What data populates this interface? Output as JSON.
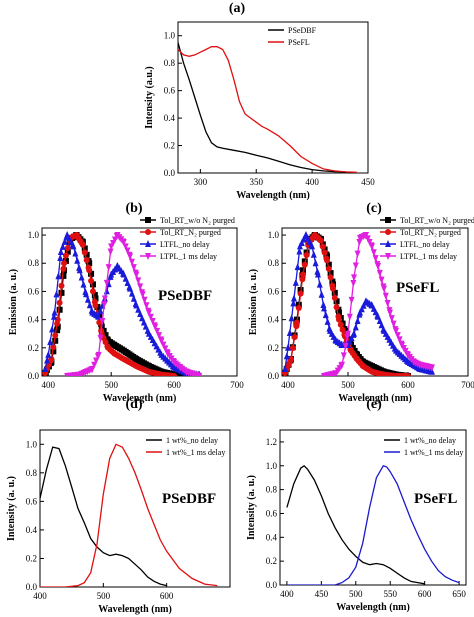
{
  "chart_data": [
    {
      "panel": "(a)",
      "type": "line",
      "title": "(a)",
      "xlabel": "Wavelength (nm)",
      "ylabel": "Intensity (a.u.)",
      "xlim": [
        280,
        450
      ],
      "ylim": [
        0,
        1.1
      ],
      "xticks": [
        "300",
        "350",
        "400",
        "450"
      ],
      "yticks": [
        "0.0",
        "0.2",
        "0.4",
        "0.6",
        "0.8",
        "1.0"
      ],
      "legend_position": "top-right",
      "series": [
        {
          "name": "PSeDBF",
          "color": "#000000",
          "x": [
            280,
            285,
            290,
            295,
            300,
            305,
            310,
            315,
            320,
            330,
            340,
            350,
            360,
            370,
            380,
            390,
            400,
            410,
            420,
            430
          ],
          "y": [
            0.95,
            0.8,
            0.68,
            0.55,
            0.42,
            0.3,
            0.22,
            0.19,
            0.18,
            0.165,
            0.15,
            0.13,
            0.11,
            0.085,
            0.06,
            0.04,
            0.025,
            0.015,
            0.01,
            0.008
          ]
        },
        {
          "name": "PSeFL",
          "color": "#e01010",
          "x": [
            280,
            285,
            290,
            295,
            300,
            305,
            310,
            315,
            320,
            325,
            330,
            335,
            340,
            345,
            350,
            355,
            360,
            370,
            380,
            390,
            400,
            410,
            420,
            430,
            440
          ],
          "y": [
            0.9,
            0.86,
            0.85,
            0.86,
            0.88,
            0.9,
            0.92,
            0.92,
            0.9,
            0.82,
            0.68,
            0.52,
            0.43,
            0.4,
            0.37,
            0.34,
            0.32,
            0.27,
            0.2,
            0.12,
            0.07,
            0.03,
            0.015,
            0.008,
            0.005
          ]
        }
      ]
    },
    {
      "panel": "(b)",
      "type": "line",
      "title": "(b)",
      "annotation": "PSeDBF",
      "xlabel": "Wavelength (nm)",
      "ylabel": "Emission (a. u.)",
      "xlim": [
        390,
        700
      ],
      "ylim": [
        0,
        1.05
      ],
      "xticks": [
        "400",
        "500",
        "600",
        "700"
      ],
      "yticks": [
        "0.0",
        "0.2",
        "0.4",
        "0.6",
        "0.8",
        "1.0"
      ],
      "legend_position": "top-right",
      "series": [
        {
          "name": "Tol_RT_w/o N₂ purged",
          "color": "#000000",
          "marker": "square",
          "x": [
            395,
            405,
            415,
            425,
            435,
            445,
            455,
            465,
            475,
            485,
            495,
            505,
            520,
            540,
            560,
            580,
            600,
            620
          ],
          "y": [
            0.02,
            0.1,
            0.35,
            0.75,
            0.97,
            1.0,
            0.95,
            0.8,
            0.55,
            0.35,
            0.25,
            0.22,
            0.18,
            0.12,
            0.07,
            0.03,
            0.01,
            0.0
          ]
        },
        {
          "name": "Tol_RT_N₂ purged",
          "color": "#e01010",
          "marker": "circle",
          "x": [
            395,
            405,
            415,
            425,
            435,
            445,
            455,
            465,
            475,
            485,
            495,
            505,
            520,
            540,
            560,
            580,
            600
          ],
          "y": [
            0.02,
            0.12,
            0.4,
            0.8,
            0.98,
            1.0,
            0.93,
            0.75,
            0.5,
            0.3,
            0.2,
            0.16,
            0.12,
            0.07,
            0.03,
            0.01,
            0.0
          ]
        },
        {
          "name": "LTFL_no delay",
          "color": "#1a1adb",
          "marker": "triangle",
          "x": [
            395,
            400,
            410,
            420,
            430,
            440,
            450,
            460,
            470,
            480,
            490,
            500,
            510,
            520,
            530,
            540,
            560,
            580,
            600,
            620,
            640
          ],
          "y": [
            0.05,
            0.15,
            0.45,
            0.88,
            1.0,
            0.92,
            0.75,
            0.58,
            0.45,
            0.42,
            0.55,
            0.72,
            0.78,
            0.72,
            0.62,
            0.5,
            0.3,
            0.15,
            0.06,
            0.02,
            0.01
          ]
        },
        {
          "name": "LTPL_1 ms delay",
          "color": "#e020e0",
          "marker": "triangle-down",
          "x": [
            430,
            450,
            470,
            480,
            490,
            500,
            510,
            520,
            530,
            540,
            550,
            560,
            570,
            580,
            590,
            600,
            610,
            620,
            640
          ],
          "y": [
            0.0,
            0.01,
            0.05,
            0.15,
            0.55,
            0.92,
            1.0,
            0.95,
            0.85,
            0.72,
            0.58,
            0.45,
            0.35,
            0.25,
            0.16,
            0.1,
            0.06,
            0.03,
            0.0
          ]
        }
      ]
    },
    {
      "panel": "(c)",
      "type": "line",
      "title": "(c)",
      "annotation": "PSeFL",
      "xlabel": "Wavelength (nm)",
      "ylabel": "Emission (a. u.)",
      "xlim": [
        390,
        700
      ],
      "ylim": [
        0,
        1.05
      ],
      "xticks": [
        "400",
        "500",
        "600",
        "700"
      ],
      "yticks": [
        "0.0",
        "0.2",
        "0.4",
        "0.6",
        "0.8",
        "1.0"
      ],
      "legend_position": "top-right",
      "series": [
        {
          "name": "Tol_RT_w/o N₂ purged",
          "color": "#000000",
          "marker": "square",
          "x": [
            395,
            405,
            415,
            425,
            435,
            445,
            455,
            465,
            475,
            485,
            495,
            505,
            515,
            525,
            540,
            560,
            580,
            600
          ],
          "y": [
            0.02,
            0.12,
            0.4,
            0.75,
            0.96,
            1.0,
            0.97,
            0.85,
            0.65,
            0.45,
            0.32,
            0.22,
            0.15,
            0.1,
            0.07,
            0.03,
            0.01,
            0.0
          ]
        },
        {
          "name": "Tol_RT_N₂ purged",
          "color": "#e01010",
          "marker": "circle",
          "x": [
            395,
            405,
            415,
            425,
            435,
            445,
            455,
            465,
            475,
            485,
            495,
            505,
            515,
            525,
            540,
            560,
            580,
            600
          ],
          "y": [
            0.02,
            0.12,
            0.38,
            0.72,
            0.95,
            1.0,
            0.96,
            0.82,
            0.62,
            0.4,
            0.28,
            0.18,
            0.12,
            0.07,
            0.03,
            0.01,
            0.0,
            0.0
          ]
        },
        {
          "name": "LTFL_no delay",
          "color": "#1a1adb",
          "marker": "triangle",
          "x": [
            395,
            400,
            410,
            420,
            430,
            440,
            450,
            460,
            470,
            480,
            490,
            500,
            510,
            520,
            530,
            540,
            550,
            560,
            580,
            600,
            620,
            640
          ],
          "y": [
            0.05,
            0.2,
            0.55,
            0.92,
            1.0,
            0.92,
            0.72,
            0.48,
            0.32,
            0.25,
            0.22,
            0.22,
            0.3,
            0.45,
            0.53,
            0.5,
            0.42,
            0.32,
            0.18,
            0.1,
            0.05,
            0.03
          ]
        },
        {
          "name": "LTPL_1 ms delay",
          "color": "#e020e0",
          "marker": "triangle-down",
          "x": [
            460,
            480,
            490,
            500,
            510,
            520,
            530,
            540,
            550,
            560,
            570,
            580,
            590,
            600,
            610,
            620,
            630,
            640
          ],
          "y": [
            0.0,
            0.02,
            0.08,
            0.3,
            0.7,
            0.98,
            1.0,
            0.92,
            0.78,
            0.62,
            0.45,
            0.32,
            0.22,
            0.15,
            0.1,
            0.08,
            0.07,
            0.06
          ]
        }
      ]
    },
    {
      "panel": "(d)",
      "type": "line",
      "title": "(d)",
      "annotation": "PSeDBF",
      "xlabel": "Wavelength (nm)",
      "ylabel": "Intensity (a. u.)",
      "xlim": [
        400,
        700
      ],
      "ylim": [
        0,
        1.1
      ],
      "xticks": [
        "400",
        "500",
        "600"
      ],
      "yticks": [
        "0.0",
        "0.2",
        "0.4",
        "0.6",
        "0.8",
        "1.0"
      ],
      "legend_position": "top-right",
      "series": [
        {
          "name": "1 wt%_no delay",
          "color": "#000000",
          "x": [
            400,
            410,
            420,
            430,
            440,
            450,
            460,
            470,
            480,
            490,
            500,
            510,
            520,
            530,
            540,
            550,
            560,
            570,
            580,
            590,
            600
          ],
          "y": [
            0.62,
            0.82,
            0.98,
            0.97,
            0.85,
            0.7,
            0.55,
            0.45,
            0.34,
            0.28,
            0.24,
            0.22,
            0.23,
            0.22,
            0.2,
            0.16,
            0.12,
            0.07,
            0.04,
            0.02,
            0.01
          ]
        },
        {
          "name": "1 wt%_1 ms delay",
          "color": "#e01010",
          "x": [
            400,
            440,
            460,
            470,
            480,
            490,
            500,
            510,
            520,
            530,
            540,
            550,
            560,
            570,
            580,
            590,
            600,
            620,
            640,
            660,
            680
          ],
          "y": [
            0.0,
            0.0,
            0.01,
            0.03,
            0.1,
            0.3,
            0.65,
            0.9,
            1.0,
            0.98,
            0.9,
            0.8,
            0.68,
            0.55,
            0.44,
            0.33,
            0.25,
            0.13,
            0.06,
            0.02,
            0.01
          ]
        }
      ]
    },
    {
      "panel": "(e)",
      "type": "line",
      "title": "(e)",
      "annotation": "PSeFL",
      "xlabel": "Wavelength (nm)",
      "ylabel": "Intensity (a. u.)",
      "xlim": [
        390,
        660
      ],
      "ylim": [
        0,
        1.3
      ],
      "xticks": [
        "400",
        "450",
        "500",
        "550",
        "600",
        "650"
      ],
      "yticks": [
        "0.0",
        "0.2",
        "0.4",
        "0.6",
        "0.8",
        "1.0",
        "1.2"
      ],
      "legend_position": "top-right",
      "series": [
        {
          "name": "1 wt%_no delay",
          "color": "#000000",
          "x": [
            400,
            410,
            420,
            425,
            430,
            440,
            450,
            460,
            470,
            480,
            490,
            500,
            510,
            520,
            530,
            540,
            550,
            560,
            570,
            580,
            590,
            600
          ],
          "y": [
            0.65,
            0.85,
            0.98,
            1.0,
            0.97,
            0.88,
            0.75,
            0.6,
            0.48,
            0.38,
            0.3,
            0.24,
            0.19,
            0.17,
            0.18,
            0.17,
            0.14,
            0.1,
            0.06,
            0.03,
            0.02,
            0.01
          ]
        },
        {
          "name": "1 wt%_1 ms delay",
          "color": "#1a1acc",
          "x": [
            400,
            470,
            480,
            490,
            500,
            510,
            520,
            530,
            540,
            545,
            550,
            560,
            570,
            580,
            590,
            600,
            610,
            620,
            630,
            640,
            650
          ],
          "y": [
            0.0,
            0.0,
            0.02,
            0.06,
            0.15,
            0.35,
            0.65,
            0.9,
            1.0,
            0.99,
            0.95,
            0.85,
            0.7,
            0.55,
            0.42,
            0.3,
            0.2,
            0.12,
            0.07,
            0.04,
            0.02
          ]
        }
      ]
    }
  ]
}
